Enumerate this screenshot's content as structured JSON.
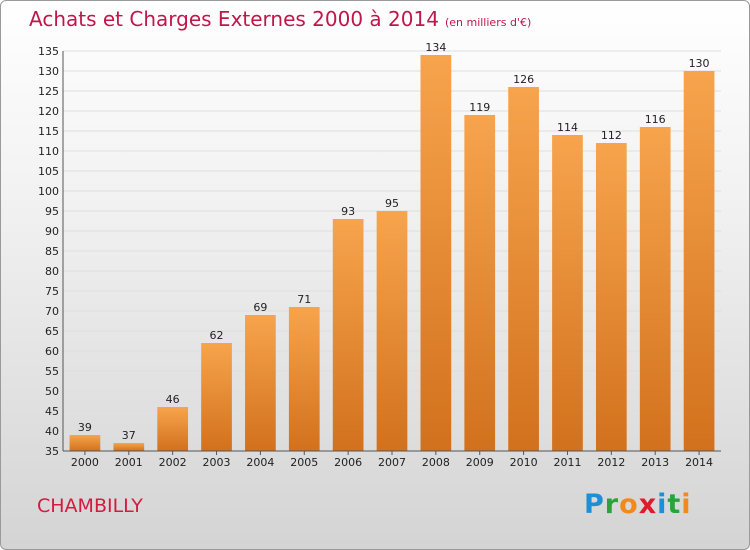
{
  "header": {
    "title": "Achats et Charges Externes 2000 à 2014",
    "unit": "(en milliers d'€)"
  },
  "footer": {
    "place": "CHAMBILLY",
    "brand_letters": [
      "P",
      "r",
      "o",
      "x",
      "i",
      "t",
      "i"
    ],
    "brand_colors": [
      "#1e8fd6",
      "#2aa33a",
      "#f08a1c",
      "#e0192b",
      "#1e8fd6",
      "#2aa33a",
      "#f08a1c"
    ]
  },
  "colors": {
    "bar_top": "#f7a44d",
    "bar_bottom": "#d2711d",
    "grid": "#dedede",
    "axis_text": "#222222"
  },
  "chart_data": {
    "type": "bar",
    "title": "Achats et Charges Externes 2000 à 2014",
    "subtitle": "(en milliers d'€)",
    "categories": [
      "2000",
      "2001",
      "2002",
      "2003",
      "2004",
      "2005",
      "2006",
      "2007",
      "2008",
      "2009",
      "2010",
      "2011",
      "2012",
      "2013",
      "2014"
    ],
    "values": [
      39,
      37,
      46,
      62,
      69,
      71,
      93,
      95,
      134,
      119,
      126,
      114,
      112,
      116,
      130
    ],
    "ylim": [
      35,
      135
    ],
    "ytick_step": 5,
    "grid": true
  }
}
